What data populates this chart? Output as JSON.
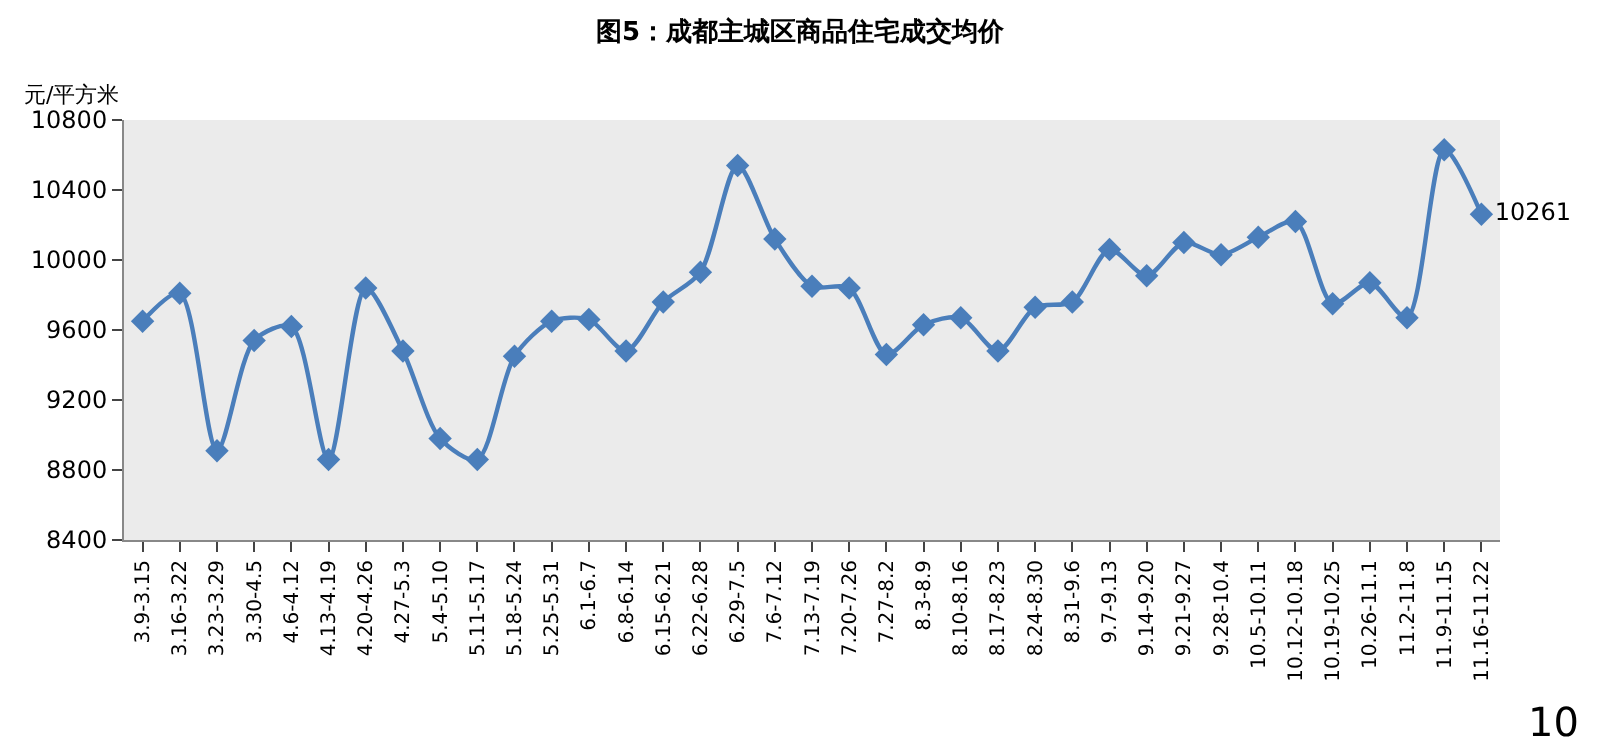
{
  "chart_data": {
    "type": "line",
    "title": "图5：成都主城区商品住宅成交均价",
    "ylabel": "元/平方米",
    "categories": [
      "3.9-3.15",
      "3.16-3.22",
      "3.23-3.29",
      "3.30-4.5",
      "4.6-4.12",
      "4.13-4.19",
      "4.20-4.26",
      "4.27-5.3",
      "5.4-5.10",
      "5.11-5.17",
      "5.18-5.24",
      "5.25-5.31",
      "6.1-6.7",
      "6.8-6.14",
      "6.15-6.21",
      "6.22-6.28",
      "6.29-7.5",
      "7.6-7.12",
      "7.13-7.19",
      "7.20-7.26",
      "7.27-8.2",
      "8.3-8.9",
      "8.10-8.16",
      "8.17-8.23",
      "8.24-8.30",
      "8.31-9.6",
      "9.7-9.13",
      "9.14-9.20",
      "9.21-9.27",
      "9.28-10.4",
      "10.5-10.11",
      "10.12-10.18",
      "10.19-10.25",
      "10.26-11.1",
      "11.2-11.8",
      "11.9-11.15",
      "11.16-11.22"
    ],
    "series": [
      {
        "color": "#4a7ebb",
        "values": [
          9650,
          9810,
          8910,
          9540,
          9620,
          8860,
          9840,
          9480,
          8980,
          8860,
          9450,
          9650,
          9660,
          9480,
          9760,
          9930,
          10540,
          10120,
          9850,
          9840,
          9460,
          9630,
          9670,
          9480,
          9730,
          9760,
          10060,
          9910,
          10100,
          10030,
          10130,
          10220,
          9750,
          9870,
          9670,
          10630,
          10261
        ],
        "value_labels": [
          null,
          null,
          null,
          null,
          null,
          null,
          null,
          null,
          null,
          null,
          null,
          null,
          null,
          null,
          null,
          null,
          null,
          null,
          null,
          null,
          null,
          null,
          null,
          null,
          null,
          null,
          null,
          null,
          null,
          null,
          null,
          null,
          null,
          null,
          null,
          null,
          "10261"
        ]
      }
    ],
    "ylim": [
      8400,
      10800
    ],
    "yticks": [
      8400,
      8800,
      9200,
      9600,
      10000,
      10400,
      10800
    ],
    "grid": false,
    "marker": "diamond",
    "line_style": "solid",
    "annotations": [
      "10"
    ]
  }
}
